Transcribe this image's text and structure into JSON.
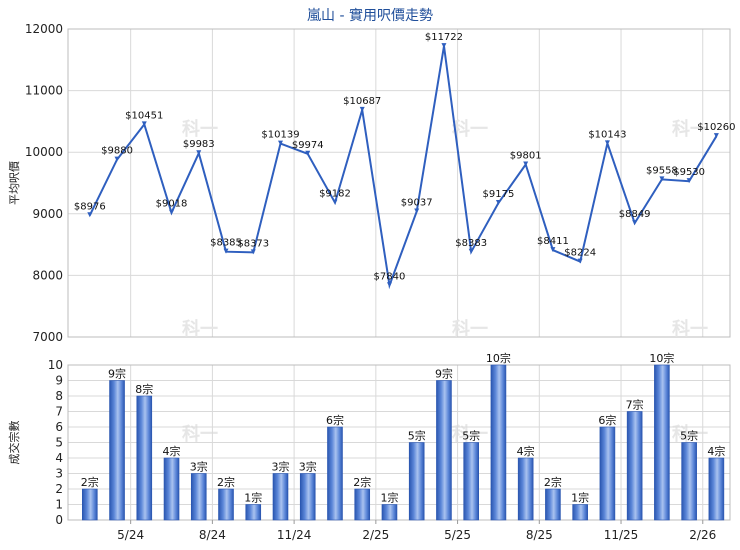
{
  "chart_data": [
    {
      "type": "line",
      "title": "嵐山 - 實用呎價走勢",
      "ylabel": "平均呎價",
      "ylim": [
        7000,
        12000
      ],
      "yticks": [
        7000,
        8000,
        9000,
        10000,
        11000,
        12000
      ],
      "grid": true,
      "series": [
        {
          "values": [
            8976,
            9880,
            10451,
            9018,
            9983,
            8385,
            8373,
            10139,
            9974,
            9182,
            10687,
            7840,
            9037,
            11722,
            8383,
            9175,
            9801,
            8411,
            8224,
            10143,
            8849,
            9558,
            9530,
            10260
          ],
          "labels": [
            "$8976",
            "$9880",
            "$10451",
            "$9018",
            "$9983",
            "$8385",
            "$8373",
            "$10139",
            "$9974",
            "$9182",
            "$10687",
            "$7840",
            "$9037",
            "$11722",
            "$8383",
            "$9175",
            "$9801",
            "$8411",
            "$8224",
            "$10143",
            "$8849",
            "$9558",
            "$9530",
            "$10260"
          ],
          "color": "#2f5fbf"
        }
      ]
    },
    {
      "type": "bar",
      "ylabel": "成交宗數",
      "ylim": [
        0,
        10
      ],
      "yticks": [
        0,
        1,
        2,
        3,
        4,
        5,
        6,
        7,
        8,
        9,
        10
      ],
      "xticks": [
        "5/24",
        "8/24",
        "11/24",
        "2/25",
        "5/25",
        "8/25",
        "11/25",
        "2/26"
      ],
      "xtick_after_index": [
        1,
        4,
        7,
        10,
        13,
        16,
        19,
        22
      ],
      "grid": true,
      "series": [
        {
          "values": [
            2,
            9,
            8,
            4,
            3,
            2,
            1,
            3,
            3,
            6,
            2,
            1,
            5,
            9,
            5,
            10,
            4,
            2,
            1,
            6,
            7,
            10,
            5,
            4
          ],
          "labels": [
            "2宗",
            "9宗",
            "8宗",
            "4宗",
            "3宗",
            "2宗",
            "1宗",
            "3宗",
            "3宗",
            "6宗",
            "2宗",
            "1宗",
            "5宗",
            "9宗",
            "5宗",
            "10宗",
            "4宗",
            "2宗",
            "1宗",
            "6宗",
            "7宗",
            "10宗",
            "5宗",
            "4宗"
          ],
          "color": "#3a68c8"
        }
      ]
    }
  ],
  "watermark": "科一"
}
